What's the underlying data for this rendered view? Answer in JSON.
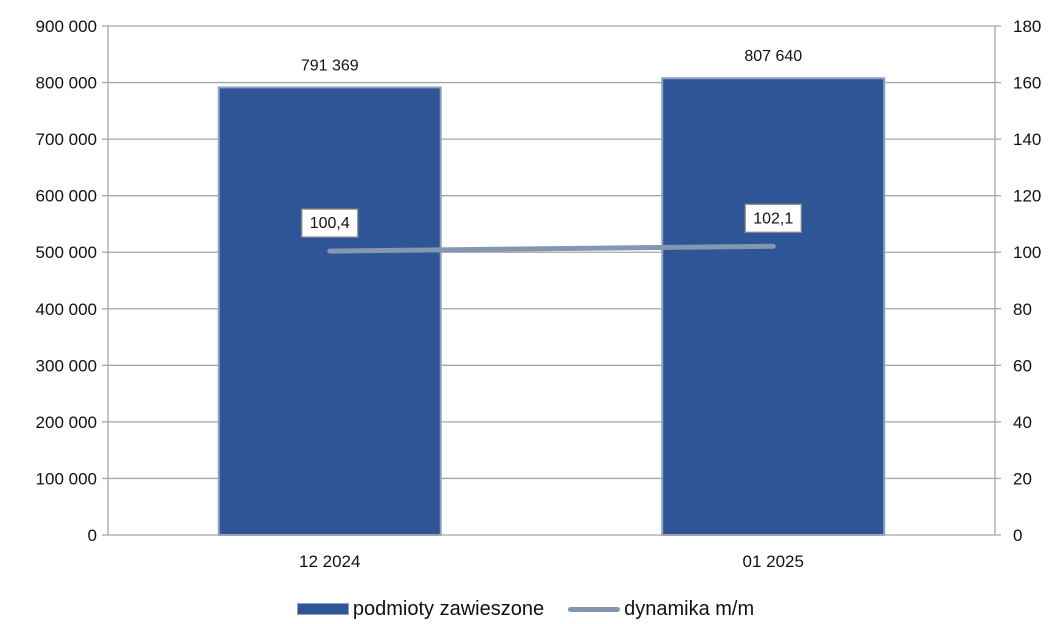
{
  "chart_data": {
    "type": "bar",
    "categories": [
      "12 2024",
      "01 2025"
    ],
    "series": [
      {
        "name": "podmioty zawieszone",
        "type": "bar",
        "axis": "left",
        "values": [
          791369,
          807640
        ],
        "labels": [
          "791 369",
          "807 640"
        ],
        "color": "#2f5597"
      },
      {
        "name": "dynamika m/m",
        "type": "line",
        "axis": "right",
        "values": [
          100.4,
          102.1
        ],
        "labels": [
          "100,4",
          "102,1"
        ],
        "color": "#8497b0"
      }
    ],
    "y_left": {
      "range": [
        0,
        900000
      ],
      "ticks": [
        0,
        100000,
        200000,
        300000,
        400000,
        500000,
        600000,
        700000,
        800000,
        900000
      ],
      "tick_labels": [
        "0",
        "100 000",
        "200 000",
        "300 000",
        "400 000",
        "500 000",
        "600 000",
        "700 000",
        "800 000",
        "900 000"
      ]
    },
    "y_right": {
      "range": [
        0,
        180
      ],
      "ticks": [
        0,
        20,
        40,
        60,
        80,
        100,
        120,
        140,
        160,
        180
      ],
      "tick_labels": [
        "0",
        "20",
        "40",
        "60",
        "80",
        "100",
        "120",
        "140",
        "160",
        "180"
      ]
    },
    "grid": true,
    "legend_position": "bottom",
    "legend": {
      "bar_label": "podmioty zawieszone",
      "line_label": "dynamika m/m"
    }
  }
}
